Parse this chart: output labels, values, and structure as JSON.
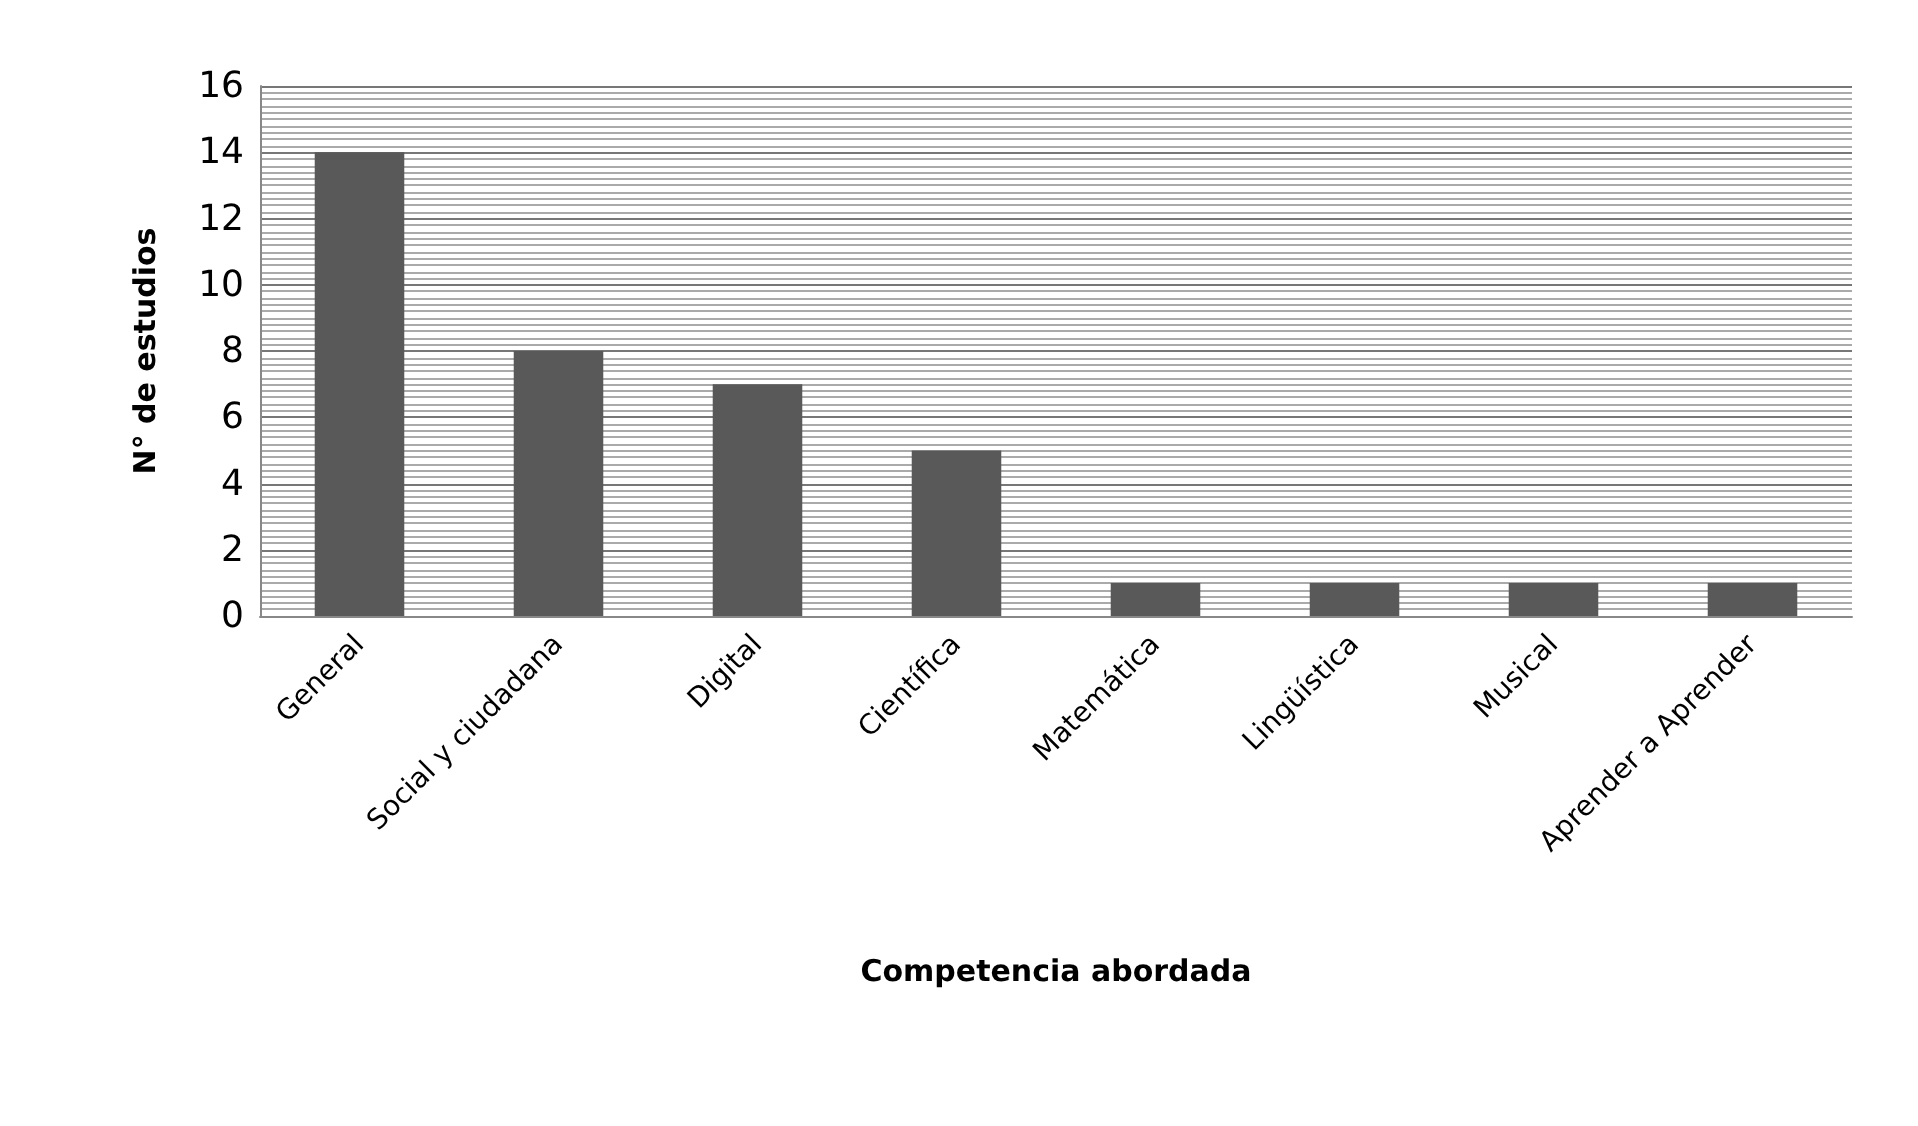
{
  "chart_data": {
    "type": "bar",
    "xlabel": "Competencia abordada",
    "ylabel": "N° de estudios",
    "categories": [
      "General",
      "Social y ciudadana",
      "Digital",
      "Científica",
      "Matemática",
      "Lingüística",
      "Musical",
      "Aprender a Aprender"
    ],
    "values": [
      14,
      8,
      7,
      5,
      1,
      1,
      1,
      1
    ],
    "color": "#595959",
    "ylim": [
      0,
      16
    ],
    "yticks": [
      0,
      2,
      4,
      6,
      8,
      10,
      12,
      14,
      16
    ],
    "grid": "y"
  }
}
